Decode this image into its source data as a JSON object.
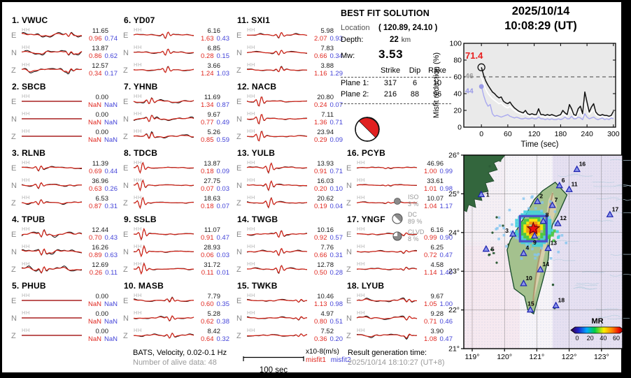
{
  "header_datetime": {
    "date": "2025/10/14",
    "time": "10:08:29  (UT)"
  },
  "stations": [
    {
      "num": "1.",
      "name": "VWUC",
      "rows": [
        {
          "comp": "E",
          "chan": "HH",
          "amp": "11.65",
          "m1": "0.96",
          "m2": "0.74"
        },
        {
          "comp": "N",
          "chan": "HH",
          "amp": "13.87",
          "m1": "0.86",
          "m2": "0.62"
        },
        {
          "comp": "Z",
          "chan": "HH",
          "amp": "12.57",
          "m1": "0.34",
          "m2": "0.17"
        }
      ]
    },
    {
      "num": "2.",
      "name": "SBCB",
      "rows": [
        {
          "comp": "E",
          "chan": "HH",
          "amp": "0.00",
          "m1": "NaN",
          "m2": "NaN"
        },
        {
          "comp": "N",
          "chan": "HH",
          "amp": "0.00",
          "m1": "NaN",
          "m2": "NaN"
        },
        {
          "comp": "Z",
          "chan": "HH",
          "amp": "0.00",
          "m1": "NaN",
          "m2": "NaN"
        }
      ]
    },
    {
      "num": "3.",
      "name": "RLNB",
      "rows": [
        {
          "comp": "E",
          "chan": "HH",
          "amp": "11.39",
          "m1": "0.69",
          "m2": "0.44"
        },
        {
          "comp": "N",
          "chan": "HH",
          "amp": "36.96",
          "m1": "0.63",
          "m2": "0.26"
        },
        {
          "comp": "Z",
          "chan": "HH",
          "amp": "6.53",
          "m1": "0.87",
          "m2": "0.31"
        }
      ]
    },
    {
      "num": "4.",
      "name": "TPUB",
      "rows": [
        {
          "comp": "E",
          "chan": "HH",
          "amp": "12.44",
          "m1": "0.70",
          "m2": "0.43"
        },
        {
          "comp": "N",
          "chan": "HH",
          "amp": "16.26",
          "m1": "0.89",
          "m2": "0.63"
        },
        {
          "comp": "Z",
          "chan": "HH",
          "amp": "12.69",
          "m1": "0.26",
          "m2": "0.11"
        }
      ]
    },
    {
      "num": "5.",
      "name": "PHUB",
      "rows": [
        {
          "comp": "E",
          "chan": "HH",
          "amp": "0.00",
          "m1": "NaN",
          "m2": "NaN"
        },
        {
          "comp": "N",
          "chan": "HH",
          "amp": "0.00",
          "m1": "NaN",
          "m2": "NaN"
        },
        {
          "comp": "Z",
          "chan": "HH",
          "amp": "0.00",
          "m1": "NaN",
          "m2": "NaN"
        }
      ]
    },
    {
      "num": "6.",
      "name": "YD07",
      "rows": [
        {
          "comp": "E",
          "chan": "HH",
          "amp": "6.16",
          "m1": "1.63",
          "m2": "0.43"
        },
        {
          "comp": "N",
          "chan": "HH",
          "amp": "6.85",
          "m1": "0.28",
          "m2": "0.15"
        },
        {
          "comp": "Z",
          "chan": "HH",
          "amp": "3.66",
          "m1": "1.24",
          "m2": "1.03"
        }
      ]
    },
    {
      "num": "7.",
      "name": "YHNB",
      "rows": [
        {
          "comp": "E",
          "chan": "HH",
          "amp": "11.69",
          "m1": "1.34",
          "m2": "0.87"
        },
        {
          "comp": "N",
          "chan": "HH",
          "amp": "9.67",
          "m1": "0.77",
          "m2": "0.49"
        },
        {
          "comp": "Z",
          "chan": "HH",
          "amp": "5.26",
          "m1": "0.85",
          "m2": "0.59"
        }
      ]
    },
    {
      "num": "8.",
      "name": "TDCB",
      "rows": [
        {
          "comp": "E",
          "chan": "HH",
          "amp": "13.87",
          "m1": "0.18",
          "m2": "0.09"
        },
        {
          "comp": "N",
          "chan": "HH",
          "amp": "27.75",
          "m1": "0.07",
          "m2": "0.03"
        },
        {
          "comp": "Z",
          "chan": "HH",
          "amp": "18.63",
          "m1": "0.18",
          "m2": "0.07"
        }
      ]
    },
    {
      "num": "9.",
      "name": "SSLB",
      "rows": [
        {
          "comp": "E",
          "chan": "HH",
          "amp": "11.07",
          "m1": "0.91",
          "m2": "0.47"
        },
        {
          "comp": "N",
          "chan": "HH",
          "amp": "28.93",
          "m1": "0.06",
          "m2": "0.03"
        },
        {
          "comp": "Z",
          "chan": "HH",
          "amp": "31.72",
          "m1": "0.11",
          "m2": "0.01"
        }
      ]
    },
    {
      "num": "10.",
      "name": "MASB",
      "rows": [
        {
          "comp": "E",
          "chan": "HH",
          "amp": "7.79",
          "m1": "0.60",
          "m2": "0.35"
        },
        {
          "comp": "N",
          "chan": "HH",
          "amp": "5.28",
          "m1": "0.62",
          "m2": "0.38"
        },
        {
          "comp": "Z",
          "chan": "HH",
          "amp": "8.42",
          "m1": "0.64",
          "m2": "0.32"
        }
      ]
    },
    {
      "num": "11.",
      "name": "SXI1",
      "rows": [
        {
          "comp": "E",
          "chan": "HH",
          "amp": "5.98",
          "m1": "2.07",
          "m2": "0.93"
        },
        {
          "comp": "N",
          "chan": "HH",
          "amp": "7.83",
          "m1": "0.66",
          "m2": "0.34"
        },
        {
          "comp": "Z",
          "chan": "HH",
          "amp": "3.88",
          "m1": "1.16",
          "m2": "1.29"
        }
      ]
    },
    {
      "num": "12.",
      "name": "NACB",
      "rows": [
        {
          "comp": "E",
          "chan": "HH",
          "amp": "20.80",
          "m1": "0.24",
          "m2": "0.07"
        },
        {
          "comp": "N",
          "chan": "HH",
          "amp": "7.11",
          "m1": "1.36",
          "m2": "0.71"
        },
        {
          "comp": "Z",
          "chan": "HH",
          "amp": "23.94",
          "m1": "0.29",
          "m2": "0.09"
        }
      ]
    },
    {
      "num": "13.",
      "name": "YULB",
      "rows": [
        {
          "comp": "E",
          "chan": "HH",
          "amp": "13.93",
          "m1": "0.91",
          "m2": "0.71"
        },
        {
          "comp": "N",
          "chan": "HH",
          "amp": "16.03",
          "m1": "0.20",
          "m2": "0.10"
        },
        {
          "comp": "Z",
          "chan": "HH",
          "amp": "20.62",
          "m1": "0.19",
          "m2": "0.04"
        }
      ]
    },
    {
      "num": "14.",
      "name": "TWGB",
      "rows": [
        {
          "comp": "E",
          "chan": "HH",
          "amp": "10.16",
          "m1": "0.92",
          "m2": "0.57"
        },
        {
          "comp": "N",
          "chan": "HH",
          "amp": "7.76",
          "m1": "0.66",
          "m2": "0.31"
        },
        {
          "comp": "Z",
          "chan": "HH",
          "amp": "12.78",
          "m1": "0.50",
          "m2": "0.28"
        }
      ]
    },
    {
      "num": "15.",
      "name": "TWKB",
      "rows": [
        {
          "comp": "E",
          "chan": "HH",
          "amp": "10.46",
          "m1": "1.13",
          "m2": "0.98"
        },
        {
          "comp": "N",
          "chan": "HH",
          "amp": "4.97",
          "m1": "0.80",
          "m2": "0.51"
        },
        {
          "comp": "Z",
          "chan": "HH",
          "amp": "7.52",
          "m1": "0.36",
          "m2": "0.20"
        }
      ]
    },
    {
      "num": "16.",
      "name": "PCYB",
      "rows": [
        {
          "comp": "E",
          "chan": "HH",
          "amp": "46.96",
          "m1": "1.00",
          "m2": "0.99"
        },
        {
          "comp": "N",
          "chan": "HH",
          "amp": "33.61",
          "m1": "1.01",
          "m2": "0.98"
        },
        {
          "comp": "Z",
          "chan": "HH",
          "amp": "10.07",
          "m1": "1.04",
          "m2": "1.17"
        }
      ]
    },
    {
      "num": "17.",
      "name": "YNGF",
      "rows": [
        {
          "comp": "E",
          "chan": "HH",
          "amp": "6.16",
          "m1": "0.99",
          "m2": "0.90"
        },
        {
          "comp": "N",
          "chan": "HH",
          "amp": "6.25",
          "m1": "0.72",
          "m2": "0.47"
        },
        {
          "comp": "Z",
          "chan": "HH",
          "amp": "4.58",
          "m1": "1.14",
          "m2": "1.40"
        }
      ]
    },
    {
      "num": "18.",
      "name": "LYUB",
      "rows": [
        {
          "comp": "E",
          "chan": "HH",
          "amp": "9.67",
          "m1": "1.05",
          "m2": "1.00"
        },
        {
          "comp": "N",
          "chan": "HH",
          "amp": "9.28",
          "m1": "0.71",
          "m2": "0.46"
        },
        {
          "comp": "Z",
          "chan": "HH",
          "amp": "3.90",
          "m1": "1.08",
          "m2": "0.47"
        }
      ]
    }
  ],
  "best_fit": {
    "title": "BEST FIT SOLUTION",
    "location_label": "Location",
    "location_value": "( 120.89,  24.10 )",
    "depth_label": "Depth:",
    "depth_value": "22",
    "depth_unit": "km",
    "mw_label": "Mw:",
    "mw_value": "3.53",
    "plane_headers": [
      "Strike",
      "Dip",
      "Rake"
    ],
    "planes": [
      {
        "label": "Plane 1:",
        "strike": "317",
        "dip": "6",
        "rake": "10"
      },
      {
        "label": "Plane 2:",
        "strike": "216",
        "dip": "88",
        "rake": "96"
      }
    ],
    "decomp": [
      {
        "label": "ISO",
        "pct": "3 %"
      },
      {
        "label": "DC",
        "pct": "89 %"
      },
      {
        "label": "CLVD",
        "pct": "8 %"
      }
    ]
  },
  "chart_data": {
    "type": "line",
    "title": "2025/10/14 10:08:29 (UT)",
    "xlabel": "Time (sec)",
    "ylabel": "Misfit reduction (%)",
    "xlim": [
      -40,
      305
    ],
    "ylim": [
      0,
      100
    ],
    "xticks": [
      0,
      60,
      120,
      180,
      240,
      300
    ],
    "yticks": [
      0,
      20,
      40,
      60,
      80,
      100
    ],
    "grid": false,
    "dashed_line_y": 60,
    "x_start": 0,
    "x_step": 5,
    "annotations": [
      {
        "text": "71.4",
        "color": "#e82020",
        "value": 71.4
      },
      {
        "text": "46",
        "color": "#9a9a9a",
        "value": 61
      },
      {
        "text": "44",
        "color": "#9a9ae8",
        "value": 43
      }
    ],
    "markers": [
      {
        "x": 0,
        "y": 71.4,
        "style": "open-circle",
        "color": "#111111"
      },
      {
        "x": 0,
        "y": 48.5,
        "style": "filled-circle",
        "color": "#9a9ae8"
      }
    ],
    "series": [
      {
        "name": "misfit-reduction-current",
        "color": "#101010",
        "values": [
          71.4,
          62,
          55,
          50,
          46,
          42,
          40,
          37,
          35,
          36,
          31,
          29,
          28,
          30,
          26,
          23,
          21,
          19,
          18,
          17,
          20,
          16,
          15,
          16,
          15,
          15,
          22,
          15,
          15,
          14,
          15,
          14,
          15,
          14,
          13,
          14,
          15,
          20,
          17,
          15,
          27,
          22,
          15,
          14,
          22,
          25,
          16,
          42,
          30,
          18,
          24,
          28,
          18,
          15,
          14,
          15,
          14,
          14,
          13,
          14,
          19
        ]
      },
      {
        "name": "misfit-reduction-white",
        "color": "#ffffff",
        "values": [
          60,
          52,
          45,
          40,
          37,
          34,
          32,
          30,
          28,
          29,
          26,
          24,
          23,
          25,
          22,
          20,
          18,
          17,
          16,
          15,
          17,
          14,
          13,
          14,
          13,
          13,
          18,
          13,
          13,
          12,
          13,
          12,
          13,
          12,
          12,
          12,
          13,
          16,
          14,
          13,
          21,
          18,
          13,
          12,
          17,
          19,
          13,
          30,
          22,
          15,
          18,
          21,
          15,
          13,
          12,
          13,
          12,
          12,
          12,
          12,
          13
        ]
      },
      {
        "name": "misfit-reduction-reference",
        "color": "#a9a9ef",
        "values": [
          49,
          38,
          30,
          25,
          27,
          16,
          13,
          14,
          13,
          12,
          13,
          14,
          15,
          13,
          12,
          11,
          12,
          11,
          10,
          10,
          11,
          10,
          10,
          11,
          10,
          10,
          12,
          10,
          10,
          9,
          10,
          9,
          10,
          9,
          9,
          10,
          9,
          10,
          12,
          10,
          10,
          13,
          10,
          10,
          12,
          11,
          9,
          16,
          12,
          10,
          11,
          12,
          10,
          9,
          10,
          11,
          9,
          10,
          9,
          11,
          10
        ]
      }
    ]
  },
  "map": {
    "lat_ticks": [
      "26°",
      "25°",
      "24°",
      "23°",
      "22°",
      "21°"
    ],
    "lon_ticks": [
      "119°",
      "120°",
      "121°",
      "122°",
      "123°"
    ],
    "epicenter": {
      "lon": 120.89,
      "lat": 24.1
    },
    "stations": [
      {
        "n": "1",
        "lon": 119.28,
        "lat": 24.98
      },
      {
        "n": "2",
        "lon": 121.02,
        "lat": 24.8
      },
      {
        "n": "3",
        "lon": 120.26,
        "lat": 23.96
      },
      {
        "n": "4",
        "lon": 120.59,
        "lat": 23.46
      },
      {
        "n": "5",
        "lon": 119.43,
        "lat": 23.57
      },
      {
        "n": "6",
        "lon": 121.7,
        "lat": 25.21
      },
      {
        "n": "7",
        "lon": 121.48,
        "lat": 24.7
      },
      {
        "n": "8",
        "lon": 121.2,
        "lat": 24.29
      },
      {
        "n": "9",
        "lon": 120.93,
        "lat": 23.91
      },
      {
        "n": "10",
        "lon": 120.59,
        "lat": 22.68
      },
      {
        "n": "11",
        "lon": 122.0,
        "lat": 25.11
      },
      {
        "n": "12",
        "lon": 121.65,
        "lat": 24.23
      },
      {
        "n": "13",
        "lon": 121.35,
        "lat": 23.59
      },
      {
        "n": "14",
        "lon": 121.11,
        "lat": 23.04
      },
      {
        "n": "15",
        "lon": 120.8,
        "lat": 22.0
      },
      {
        "n": "16",
        "lon": 122.24,
        "lat": 25.63
      },
      {
        "n": "17",
        "lon": 123.26,
        "lat": 24.46
      },
      {
        "n": "18",
        "lon": 121.59,
        "lat": 22.11
      }
    ],
    "legend": {
      "label": "MR",
      "ticks": [
        "0",
        "20",
        "40",
        "60"
      ]
    }
  },
  "footer": {
    "bats_line": "BATS, Velocity, 0.02-0.1 Hz",
    "alive_line": "Number of alive data: 48",
    "scalebar_label": "100 sec",
    "units_label": "x10-8(m/s)",
    "misfit1_label": "misfit1",
    "misfit2_label": "misfit2",
    "result_title": "Result generation time:",
    "result_time": "2025/10/14 18:10:27 (UT+8)"
  }
}
